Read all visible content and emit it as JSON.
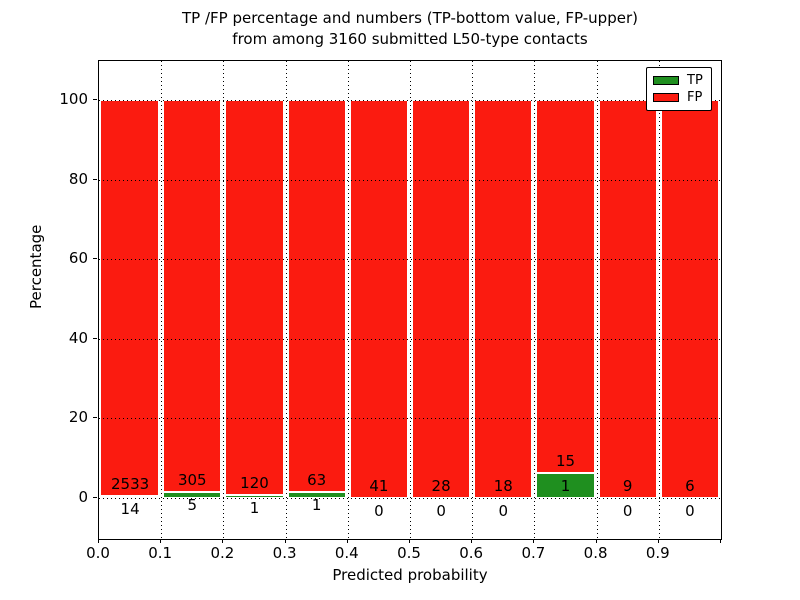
{
  "chart_data": {
    "type": "bar",
    "stacked": true,
    "title_line1": "TP /FP percentage and numbers (TP-bottom value, FP-upper)",
    "title_line2": "from among 3160 submitted L50-type contacts",
    "xlabel": "Predicted probability",
    "ylabel": "Percentage",
    "x_tick_labels": [
      "0.0",
      "0.1",
      "0.2",
      "0.3",
      "0.4",
      "0.5",
      "0.6",
      "0.7",
      "0.8",
      "0.9"
    ],
    "y_tick_values": [
      0,
      20,
      40,
      60,
      80,
      100
    ],
    "xlim": [
      0.0,
      1.0
    ],
    "ylim": [
      -10.8,
      109.8
    ],
    "grid": "dotted black, drawn over bars",
    "legend": {
      "position": "upper right"
    },
    "series": [
      {
        "name": "TP",
        "color": "#1f8f1f",
        "role": "bottom segment, percent of bin"
      },
      {
        "name": "FP",
        "color": "#fb1b10",
        "role": "upper segment, fills to 100%"
      }
    ],
    "total_submitted": 3160,
    "bins": [
      {
        "x0": 0.0,
        "x1": 0.1,
        "tp": 14,
        "fp": 2533
      },
      {
        "x0": 0.1,
        "x1": 0.2,
        "tp": 5,
        "fp": 305
      },
      {
        "x0": 0.2,
        "x1": 0.3,
        "tp": 1,
        "fp": 120
      },
      {
        "x0": 0.3,
        "x1": 0.4,
        "tp": 1,
        "fp": 63
      },
      {
        "x0": 0.4,
        "x1": 0.5,
        "tp": 0,
        "fp": 41
      },
      {
        "x0": 0.5,
        "x1": 0.6,
        "tp": 0,
        "fp": 28
      },
      {
        "x0": 0.6,
        "x1": 0.7,
        "tp": 0,
        "fp": 18
      },
      {
        "x0": 0.7,
        "x1": 0.8,
        "tp": 1,
        "fp": 15
      },
      {
        "x0": 0.8,
        "x1": 0.9,
        "tp": 0,
        "fp": 9
      },
      {
        "x0": 0.9,
        "x1": 1.0,
        "tp": 0,
        "fp": 6
      }
    ]
  }
}
